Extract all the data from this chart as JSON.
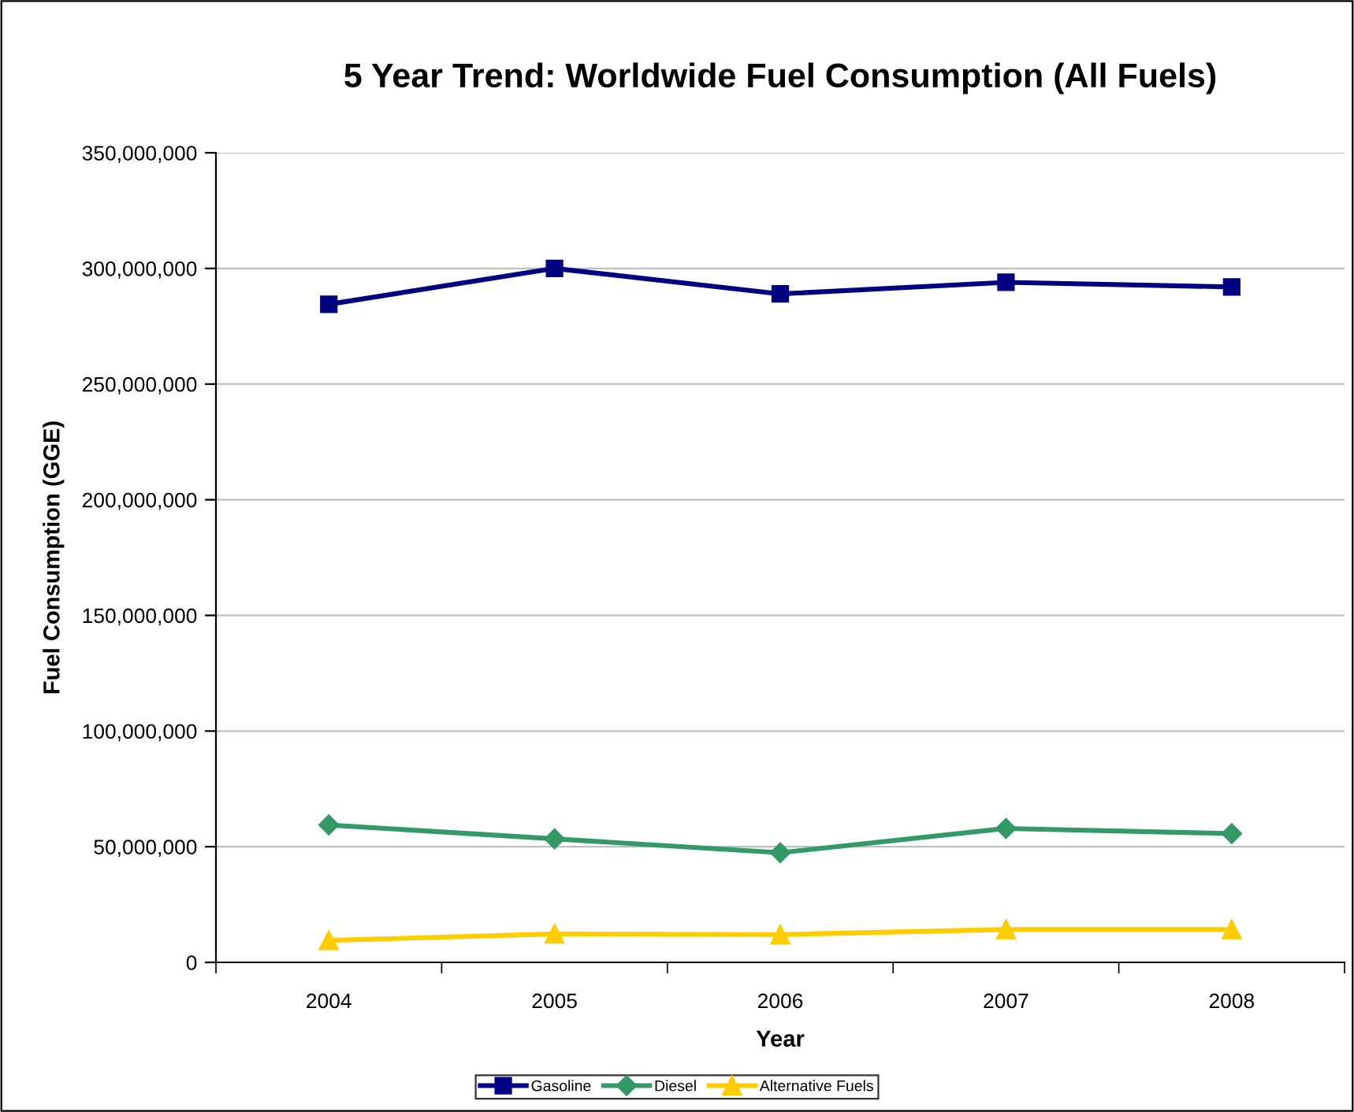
{
  "chart_data": {
    "type": "line",
    "title": "5 Year Trend: Worldwide Fuel Consumption (All Fuels)",
    "xlabel": "Year",
    "ylabel": "Fuel Consumption (GGE)",
    "categories": [
      "2004",
      "2005",
      "2006",
      "2007",
      "2008"
    ],
    "series": [
      {
        "name": "Gasoline",
        "color": "#000080",
        "marker": "square",
        "values": [
          284500000,
          300000000,
          289000000,
          294000000,
          292000000
        ]
      },
      {
        "name": "Diesel",
        "color": "#339966",
        "marker": "diamond",
        "values": [
          59400000,
          53400000,
          47400000,
          57900000,
          55700000
        ]
      },
      {
        "name": "Alternative Fuels",
        "color": "#ffcc00",
        "marker": "triangle",
        "values": [
          9500000,
          12300000,
          12000000,
          14200000,
          14200000
        ]
      }
    ],
    "ylim": [
      0,
      350000000
    ],
    "yticks": [
      {
        "value": 0,
        "label": "0"
      },
      {
        "value": 50000000,
        "label": "50,000,000"
      },
      {
        "value": 100000000,
        "label": "100,000,000"
      },
      {
        "value": 150000000,
        "label": "150,000,000"
      },
      {
        "value": 200000000,
        "label": "200,000,000"
      },
      {
        "value": 250000000,
        "label": "250,000,000"
      },
      {
        "value": 300000000,
        "label": "300,000,000"
      },
      {
        "value": 350000000,
        "label": "350,000,000"
      }
    ],
    "grid": "y",
    "legend": "bottom",
    "line_style": "solid"
  }
}
